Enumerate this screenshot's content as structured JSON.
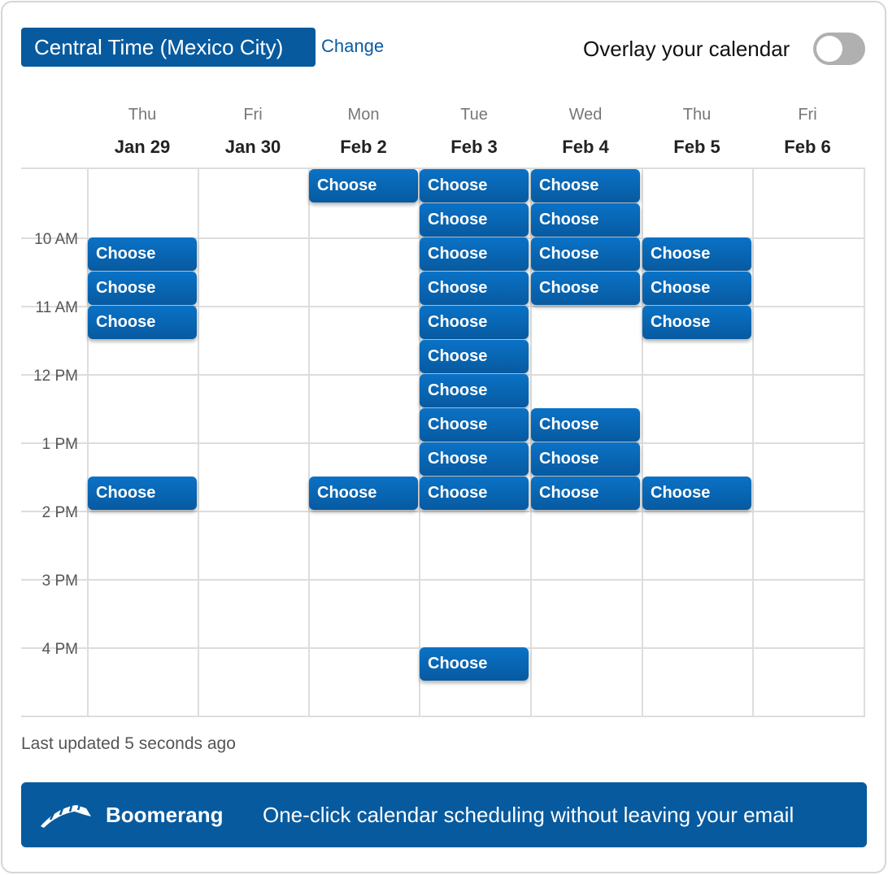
{
  "header": {
    "timezone": "Central Time (Mexico City)",
    "change_label": "Change",
    "overlay_label": "Overlay your calendar",
    "overlay_on": false
  },
  "days": [
    {
      "dow": "Thu",
      "date": "Jan 29",
      "slots": [
        2,
        3,
        4,
        9
      ]
    },
    {
      "dow": "Fri",
      "date": "Jan 30",
      "slots": []
    },
    {
      "dow": "Mon",
      "date": "Feb 2",
      "slots": [
        0,
        9
      ]
    },
    {
      "dow": "Tue",
      "date": "Feb 3",
      "slots": [
        0,
        1,
        2,
        3,
        4,
        5,
        6,
        7,
        8,
        9,
        14
      ]
    },
    {
      "dow": "Wed",
      "date": "Feb 4",
      "slots": [
        0,
        1,
        2,
        3,
        7,
        8,
        9
      ]
    },
    {
      "dow": "Thu",
      "date": "Feb 5",
      "slots": [
        2,
        3,
        4,
        9
      ]
    },
    {
      "dow": "Fri",
      "date": "Feb 6",
      "slots": []
    }
  ],
  "slot_label": "Choose",
  "time_labels": [
    "10 AM",
    "11 AM",
    "12 PM",
    "1 PM",
    "2 PM",
    "3 PM",
    "4 PM"
  ],
  "footer": {
    "last_updated": "Last updated 5 seconds ago"
  },
  "banner": {
    "brand": "Boomerang",
    "tagline": "One-click calendar scheduling without leaving your email"
  },
  "colors": {
    "accent": "#075a9e"
  }
}
